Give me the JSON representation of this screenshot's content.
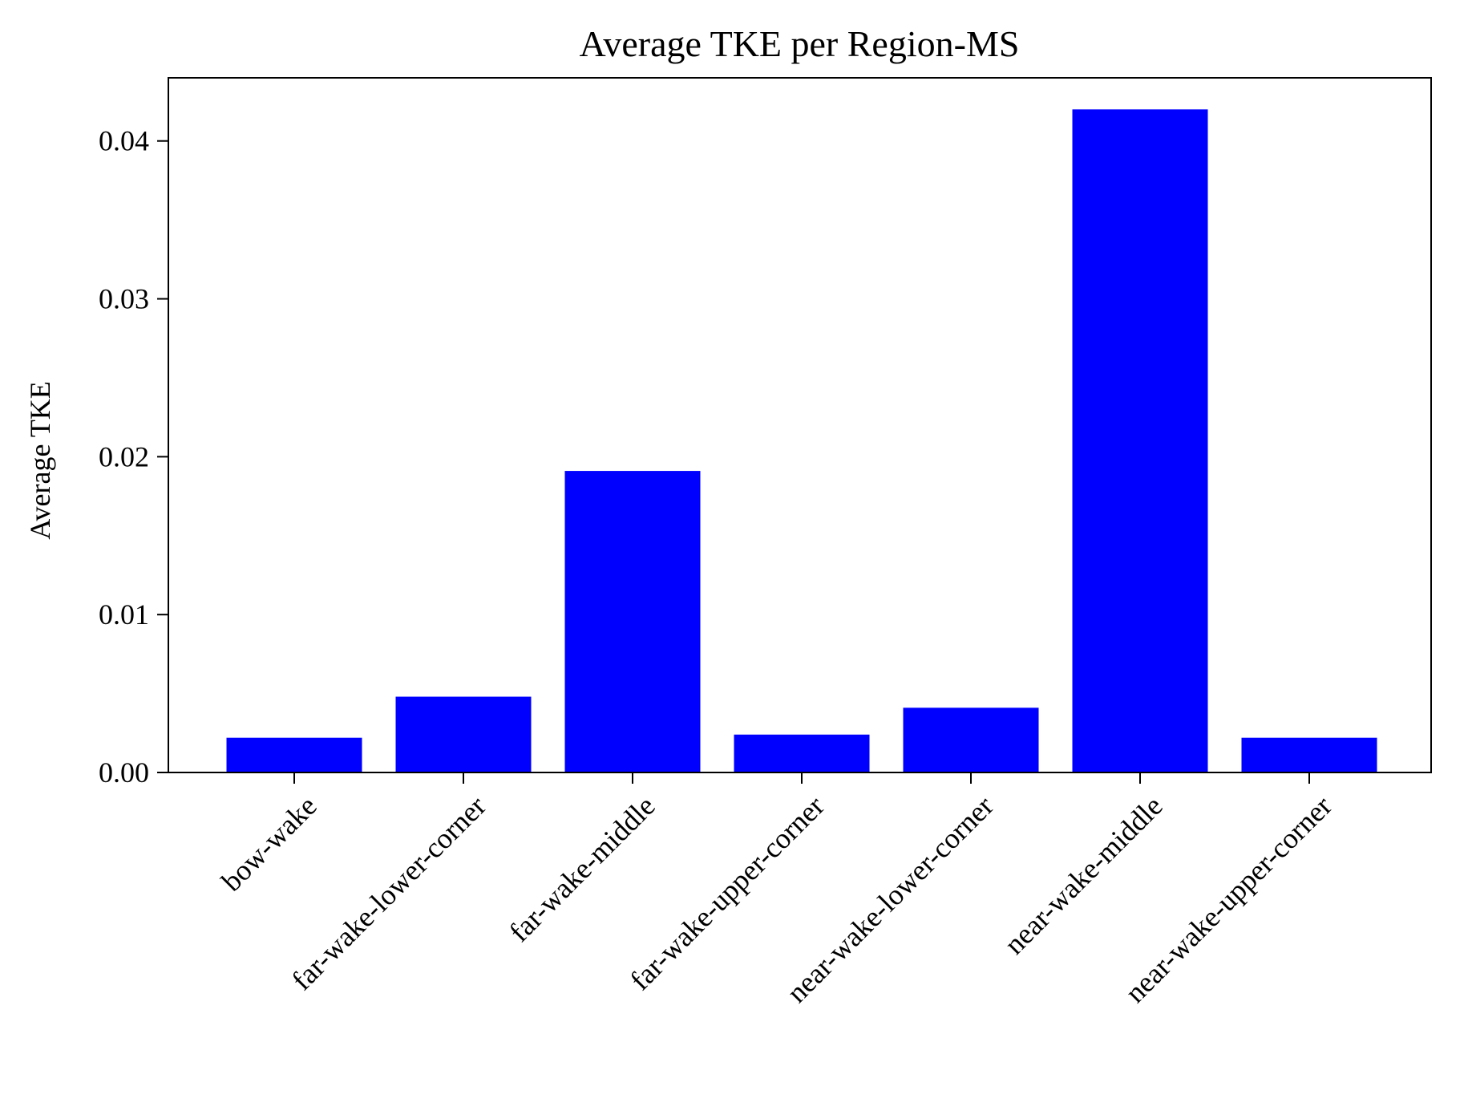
{
  "chart_data": {
    "type": "bar",
    "title": "Average TKE per Region-MS",
    "xlabel": "",
    "ylabel": "Average TKE",
    "categories": [
      "bow-wake",
      "far-wake-lower-corner",
      "far-wake-middle",
      "far-wake-upper-corner",
      "near-wake-lower-corner",
      "near-wake-middle",
      "near-wake-upper-corner"
    ],
    "values": [
      0.0022,
      0.0048,
      0.0191,
      0.0024,
      0.0041,
      0.042,
      0.0022
    ],
    "ylim": [
      0,
      0.044
    ],
    "yticks": [
      0.0,
      0.01,
      0.02,
      0.03,
      0.04
    ],
    "ytick_labels": [
      "0.00",
      "0.01",
      "0.02",
      "0.03",
      "0.04"
    ],
    "bar_color": "#0000ff",
    "grid": false,
    "xtick_rotation_deg": -45
  }
}
